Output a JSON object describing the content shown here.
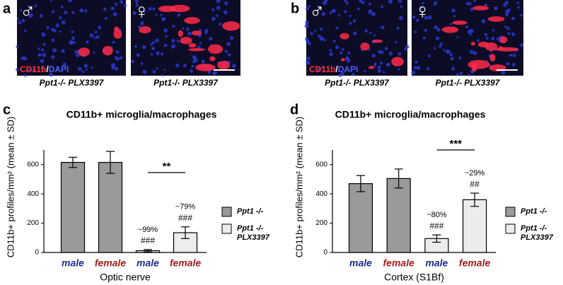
{
  "panels": [
    {
      "letter": "a",
      "images": [
        {
          "symbol": "♂",
          "caption": "Ppt1-/- PLX3397"
        },
        {
          "symbol": "♀",
          "caption": "Ppt1-/- PLX3397"
        }
      ],
      "stain": [
        "CD11b",
        "/",
        "DAPI"
      ]
    },
    {
      "letter": "b",
      "images": [
        {
          "symbol": "♂",
          "caption": "Ppt1-/- PLX3397"
        },
        {
          "symbol": "♀",
          "caption": "Ppt1-/- PLX3397"
        }
      ],
      "stain": [
        "CD11b",
        "/",
        "DAPI"
      ]
    }
  ],
  "chart_data": [
    {
      "type": "bar",
      "panel_letter": "c",
      "title": "CD11b+ microglia/macrophages",
      "ylabel": "CD11b+ profiles/mm² (mean ± SD)",
      "xlabel": "Optic nerve",
      "categories": [
        "male",
        "female",
        "male",
        "female"
      ],
      "category_colors": [
        "#1f2a8c",
        "#a11d1d",
        "#1f2a8c",
        "#a11d1d"
      ],
      "series": [
        {
          "name": "Ppt1 -/-",
          "color": "#9a9a9a",
          "values": [
            615,
            615,
            null,
            null
          ],
          "errors": [
            35,
            75,
            null,
            null
          ]
        },
        {
          "name": "Ppt1 -/- PLX3397",
          "color": "#ececec",
          "values": [
            null,
            null,
            12,
            135
          ],
          "errors": [
            null,
            null,
            8,
            40
          ]
        }
      ],
      "bar_annotations": [
        null,
        null,
        [
          "~99%",
          "###"
        ],
        [
          "~79%",
          "###"
        ]
      ],
      "significance": "**",
      "ylim": [
        0,
        700
      ],
      "yticks": [
        0,
        200,
        400,
        600
      ]
    },
    {
      "type": "bar",
      "panel_letter": "d",
      "title": "CD11b+ microglia/macrophages",
      "ylabel": "CD11b+ profiles/mm² (mean ± SD)",
      "xlabel": "Cortex (S1Bf)",
      "categories": [
        "male",
        "female",
        "male",
        "female"
      ],
      "category_colors": [
        "#1f2a8c",
        "#a11d1d",
        "#1f2a8c",
        "#a11d1d"
      ],
      "series": [
        {
          "name": "Ppt1 -/-",
          "color": "#9a9a9a",
          "values": [
            470,
            505,
            null,
            null
          ],
          "errors": [
            55,
            65,
            null,
            null
          ]
        },
        {
          "name": "Ppt1 -/- PLX3397",
          "color": "#ececec",
          "values": [
            null,
            null,
            95,
            360
          ],
          "errors": [
            null,
            null,
            25,
            45
          ]
        }
      ],
      "bar_annotations": [
        null,
        null,
        [
          "~80%",
          "###"
        ],
        [
          "~29%",
          "##"
        ]
      ],
      "significance": "***",
      "ylim": [
        0,
        700
      ],
      "yticks": [
        0,
        200,
        400,
        600
      ]
    }
  ]
}
